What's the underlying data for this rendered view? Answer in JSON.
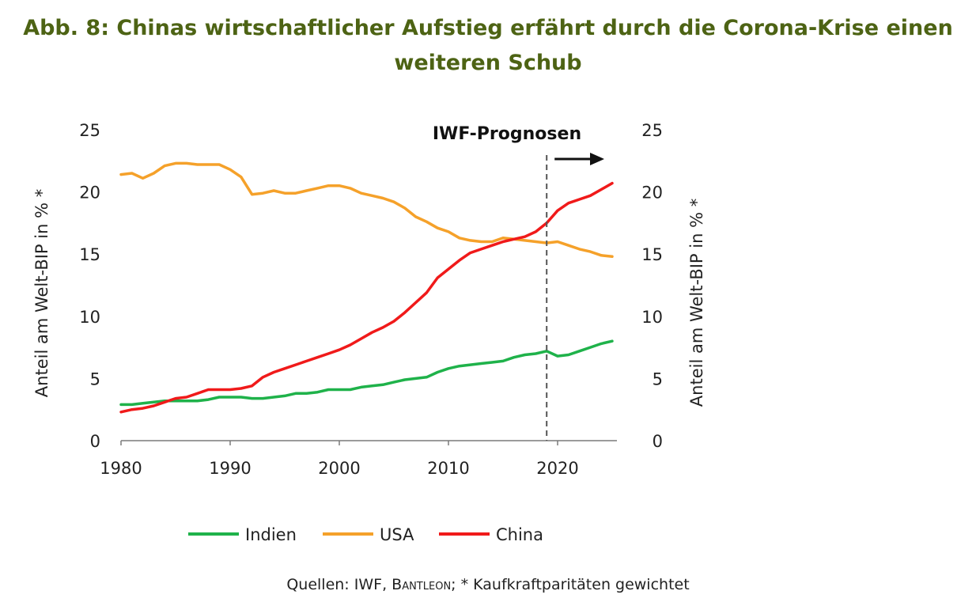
{
  "title": "Abb. 8: Chinas wirtschaftlicher Aufstieg erfährt durch die Corona-Krise einen weiteren Schub",
  "source": {
    "prefix": "Quellen: IWF, ",
    "brand": "Bantleon",
    "suffix": "; * Kaufkraftparitäten gewichtet"
  },
  "chart_data": {
    "type": "line",
    "xlabel": "",
    "ylabel_left": "Anteil am Welt-BIP in % *",
    "ylabel_right": "Anteil am Welt-BIP in % *",
    "xlim": [
      1980,
      2025
    ],
    "ylim": [
      0,
      25
    ],
    "x_ticks": [
      1980,
      1990,
      2000,
      2010,
      2020
    ],
    "y_ticks": [
      0,
      5,
      10,
      15,
      20,
      25
    ],
    "grid": false,
    "legend_position": "bottom",
    "annotation": {
      "text": "IWF-Prognosen",
      "x": 2019
    },
    "x": [
      1980,
      1981,
      1982,
      1983,
      1984,
      1985,
      1986,
      1987,
      1988,
      1989,
      1990,
      1991,
      1992,
      1993,
      1994,
      1995,
      1996,
      1997,
      1998,
      1999,
      2000,
      2001,
      2002,
      2003,
      2004,
      2005,
      2006,
      2007,
      2008,
      2009,
      2010,
      2011,
      2012,
      2013,
      2014,
      2015,
      2016,
      2017,
      2018,
      2019,
      2020,
      2021,
      2022,
      2023,
      2024,
      2025
    ],
    "series": [
      {
        "name": "Indien",
        "color": "#1fb24a",
        "values": [
          2.9,
          2.9,
          3.0,
          3.1,
          3.2,
          3.2,
          3.2,
          3.2,
          3.3,
          3.5,
          3.5,
          3.5,
          3.4,
          3.4,
          3.5,
          3.6,
          3.8,
          3.8,
          3.9,
          4.1,
          4.1,
          4.1,
          4.3,
          4.4,
          4.5,
          4.7,
          4.9,
          5.0,
          5.1,
          5.5,
          5.8,
          6.0,
          6.1,
          6.2,
          6.3,
          6.4,
          6.7,
          6.9,
          7.0,
          7.2,
          6.8,
          6.9,
          7.2,
          7.5,
          7.8,
          8.0
        ]
      },
      {
        "name": "USA",
        "color": "#f5a12a",
        "values": [
          21.4,
          21.5,
          21.1,
          21.5,
          22.1,
          22.3,
          22.3,
          22.2,
          22.2,
          22.2,
          21.8,
          21.2,
          19.8,
          19.9,
          20.1,
          19.9,
          19.9,
          20.1,
          20.3,
          20.5,
          20.5,
          20.3,
          19.9,
          19.7,
          19.5,
          19.2,
          18.7,
          18.0,
          17.6,
          17.1,
          16.8,
          16.3,
          16.1,
          16.0,
          16.0,
          16.3,
          16.2,
          16.1,
          16.0,
          15.9,
          16.0,
          15.7,
          15.4,
          15.2,
          14.9,
          14.8
        ]
      },
      {
        "name": "China",
        "color": "#f01a1a",
        "values": [
          2.3,
          2.5,
          2.6,
          2.8,
          3.1,
          3.4,
          3.5,
          3.8,
          4.1,
          4.1,
          4.1,
          4.2,
          4.4,
          5.1,
          5.5,
          5.8,
          6.1,
          6.4,
          6.7,
          7.0,
          7.3,
          7.7,
          8.2,
          8.7,
          9.1,
          9.6,
          10.3,
          11.1,
          11.9,
          13.1,
          13.8,
          14.5,
          15.1,
          15.4,
          15.7,
          16.0,
          16.2,
          16.4,
          16.8,
          17.5,
          18.5,
          19.1,
          19.4,
          19.7,
          20.2,
          20.7
        ]
      }
    ]
  }
}
